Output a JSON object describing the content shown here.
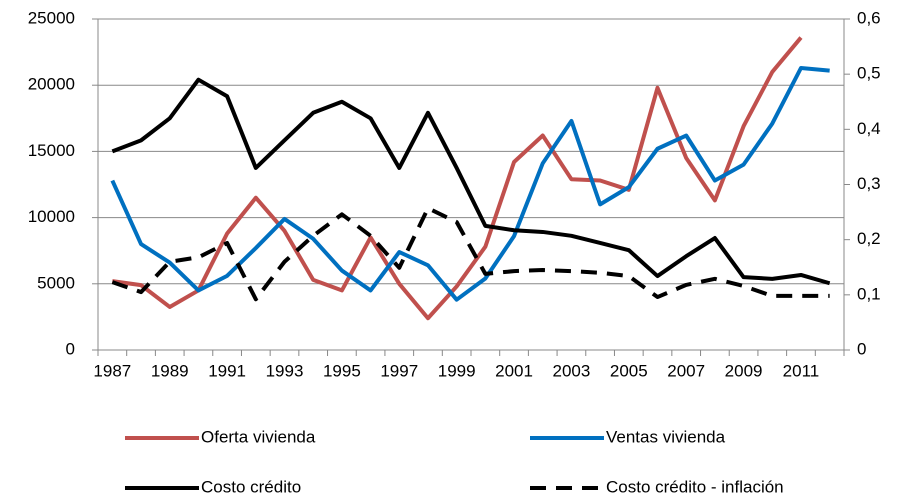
{
  "chart_data": {
    "type": "line",
    "categories": [
      "1987",
      null,
      "1989",
      null,
      "1991",
      null,
      "1993",
      null,
      "1995",
      null,
      "1997",
      null,
      "1999",
      null,
      "2001",
      null,
      "2003",
      null,
      "2005",
      null,
      "2007",
      null,
      "2009",
      null,
      "2011",
      null
    ],
    "ylim": [
      0,
      25000
    ],
    "yticks": [
      0,
      5000,
      10000,
      15000,
      20000,
      25000
    ],
    "y2lim": [
      0,
      0.6
    ],
    "y2ticks": [
      0,
      {
        "value": 0.1,
        "label": "0,1"
      },
      {
        "value": 0.2,
        "label": "0,2"
      },
      {
        "value": 0.3,
        "label": "0,3"
      },
      {
        "value": 0.4,
        "label": "0,4"
      },
      {
        "value": 0.5,
        "label": "0,5"
      },
      {
        "value": 0.6,
        "label": "0,6"
      }
    ],
    "grid": true,
    "legend": "bottom",
    "series": [
      {
        "name": "Oferta vivienda",
        "color": "#c0504d",
        "line_style": "solid",
        "values": [
          5200,
          4900,
          3250,
          4500,
          8800,
          11500,
          9000,
          5300,
          4500,
          8500,
          5000,
          2400,
          4800,
          7800,
          14200,
          16200,
          12900,
          12800,
          12100,
          19800,
          14500,
          11300,
          16900,
          21000,
          23600,
          null
        ]
      },
      {
        "name": "Ventas vivienda",
        "color": "#0070c0",
        "line_style": "solid",
        "values": [
          12800,
          8000,
          6600,
          4500,
          5600,
          7700,
          9900,
          8400,
          6000,
          4500,
          7400,
          6400,
          3800,
          5400,
          8600,
          14100,
          17300,
          11000,
          12300,
          15200,
          16200,
          12800,
          14000,
          17100,
          21300,
          21100
        ]
      },
      {
        "name": "Costo crédito",
        "color": "#000000",
        "line_style": "solid",
        "axis": "y2",
        "values": [
          0.36,
          0.38,
          0.42,
          0.49,
          0.46,
          0.33,
          0.38,
          0.43,
          0.45,
          0.42,
          0.33,
          0.43,
          0.33,
          0.225,
          0.217,
          0.214,
          0.207,
          0.194,
          0.181,
          0.134,
          0.17,
          0.203,
          0.132,
          0.129,
          0.136,
          0.121
        ]
      },
      {
        "name": "Costo crédito - inflación",
        "color": "#000000",
        "line_style": "dashed",
        "axis": "y2",
        "values": [
          0.123,
          0.105,
          0.16,
          0.168,
          0.194,
          0.092,
          0.16,
          0.207,
          0.246,
          0.207,
          0.149,
          0.257,
          0.232,
          0.138,
          0.143,
          0.145,
          0.143,
          0.14,
          0.134,
          0.096,
          0.118,
          0.129,
          0.116,
          0.098,
          0.098,
          0.098
        ]
      }
    ]
  }
}
